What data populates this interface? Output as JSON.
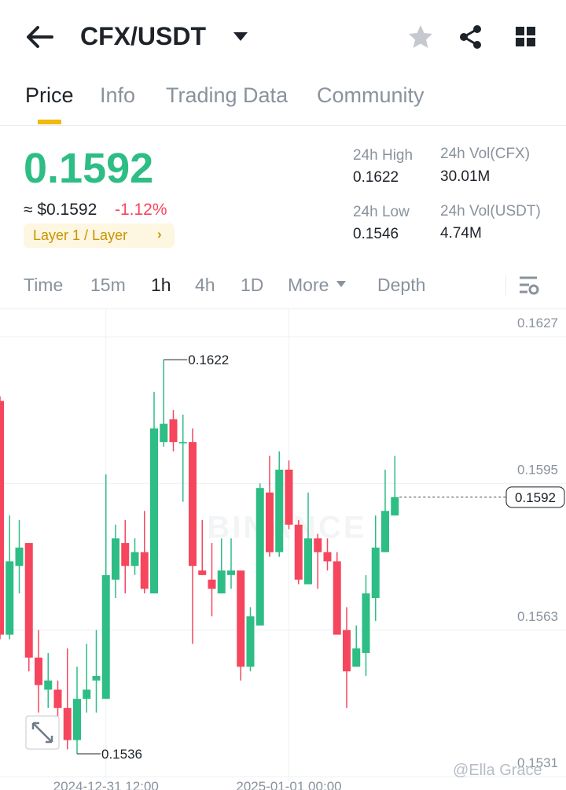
{
  "header": {
    "pair": "CFX/USDT"
  },
  "tabs": [
    "Price",
    "Info",
    "Trading Data",
    "Community"
  ],
  "ticker": {
    "price": "0.1592",
    "usd": "≈ $0.1592",
    "change": "-1.12%",
    "tag": "Layer 1 / Layer"
  },
  "stats": [
    {
      "label": "24h High",
      "value": "0.1622"
    },
    {
      "label": "24h Vol(CFX)",
      "value": "30.01M"
    },
    {
      "label": "24h Low",
      "value": "0.1546"
    },
    {
      "label": "24h Vol(USDT)",
      "value": "4.74M"
    }
  ],
  "timeframes": [
    "Time",
    "15m",
    "1h",
    "4h",
    "1D",
    "More",
    "Depth"
  ],
  "watermark": "@Ella Grace",
  "logo": "BINANCE",
  "chart_data": {
    "type": "candlestick",
    "open": [
      0.1613,
      0.1562,
      0.1577,
      0.1582,
      0.1557,
      0.155,
      0.155,
      0.1546,
      0.1539,
      0.1548,
      0.1552,
      0.1548,
      0.1574,
      0.1582,
      0.1577,
      0.158,
      0.1571,
      0.1604,
      0.1609,
      0.1604,
      0.1604,
      0.1576,
      0.1574,
      0.1571,
      0.1575,
      0.1576,
      0.1555,
      0.1564,
      0.1593,
      0.158,
      0.1598,
      0.1586,
      0.1573,
      0.1583,
      0.158,
      0.1578,
      0.1563,
      0.1555,
      0.1558,
      0.157,
      0.158,
      0.1588
    ],
    "high": [
      0.1614,
      0.1588,
      0.1587,
      0.1582,
      0.1563,
      0.1558,
      0.1552,
      0.1559,
      0.1555,
      0.156,
      0.1563,
      0.1597,
      0.1586,
      0.1587,
      0.1583,
      0.1589,
      0.1615,
      0.1622,
      0.1611,
      0.161,
      0.1607,
      0.1587,
      0.1582,
      0.1583,
      0.1583,
      0.1576,
      0.1568,
      0.1595,
      0.1601,
      0.1602,
      0.16,
      0.1587,
      0.1593,
      0.1584,
      0.1583,
      0.158,
      0.1568,
      0.1564,
      0.1575,
      0.1588,
      0.1598,
      0.1601
    ],
    "low": [
      0.1561,
      0.1561,
      0.1571,
      0.1554,
      0.1545,
      0.1546,
      0.154,
      0.1537,
      0.1536,
      0.1545,
      0.1545,
      0.1548,
      0.157,
      0.1571,
      0.1575,
      0.1571,
      0.1571,
      0.1603,
      0.1602,
      0.1591,
      0.156,
      0.1575,
      0.1566,
      0.1571,
      0.1572,
      0.1552,
      0.1554,
      0.1564,
      0.1579,
      0.1579,
      0.1585,
      0.1573,
      0.1573,
      0.1572,
      0.1576,
      0.1562,
      0.1546,
      0.1555,
      0.1553,
      0.1565,
      0.158,
      0.1588
    ],
    "close": [
      0.1562,
      0.1578,
      0.1581,
      0.1557,
      0.1551,
      0.1552,
      0.1546,
      0.1539,
      0.1548,
      0.155,
      0.1553,
      0.1575,
      0.1583,
      0.1577,
      0.158,
      0.1572,
      0.1607,
      0.1608,
      0.1604,
      0.1604,
      0.1577,
      0.1575,
      0.1572,
      0.1576,
      0.1576,
      0.1555,
      0.1566,
      0.1594,
      0.158,
      0.1598,
      0.1586,
      0.1574,
      0.1583,
      0.158,
      0.1578,
      0.1562,
      0.1554,
      0.1559,
      0.1571,
      0.1581,
      0.1589,
      0.1592
    ],
    "up_color": "#2ebd85",
    "down_color": "#f6465d",
    "ylim": [
      0.153,
      0.1633
    ],
    "yticks": [
      0.1627,
      0.1595,
      0.1563,
      0.1531
    ],
    "xticks": [
      {
        "value": 11,
        "label": "2024-12-31 12:00"
      },
      {
        "value": 30,
        "label": "2025-01-01 00:00"
      }
    ],
    "max_marker": 0.1622,
    "min_marker": 0.1536,
    "last_price": 0.1592,
    "grid": true
  }
}
